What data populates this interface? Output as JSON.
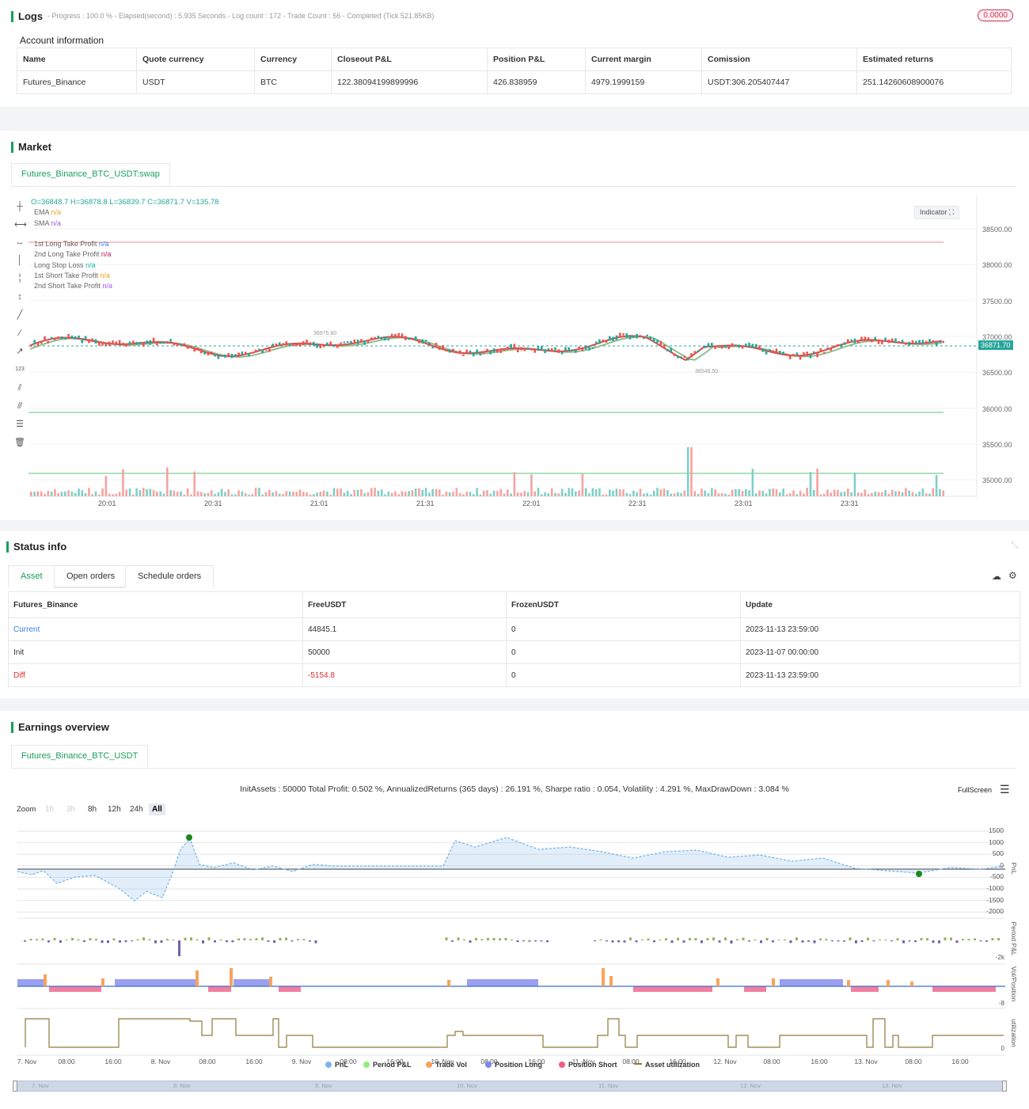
{
  "logs": {
    "title": "Logs",
    "status": "- Progress : 100.0 % - Elapsed(second) : 5.935 Seconds - Log count : 172 - Trade Count : 56 - Completed (Tick 521.85KB)",
    "badge": "0.0000"
  },
  "account": {
    "title": "Account information",
    "headers": [
      "Name",
      "Quote currency",
      "Currency",
      "Closeout P&L",
      "Position P&L",
      "Current margin",
      "Comission",
      "Estimated returns"
    ],
    "row": [
      "Futures_Binance",
      "USDT",
      "BTC",
      "122.38094199899996",
      "426.838959",
      "4979.1999159",
      "USDT:306.205407447",
      "251.14260608900076"
    ]
  },
  "market": {
    "title": "Market",
    "tab": "Futures_Binance_BTC_USDT:swap",
    "ohlc": "O=36848.7 H=36878.8 L=36839.7 C=36871.7 V=135.78",
    "indicators": [
      {
        "name": "EMA",
        "val": "n/a",
        "color": "#f0a030"
      },
      {
        "name": "SMA",
        "val": "n/a",
        "color": "#9a5cc6"
      },
      {
        "name": "1st Long Take Profit",
        "val": "n/a",
        "color": "#3b82f6"
      },
      {
        "name": "2nd Long Take Profit",
        "val": "n/a",
        "color": "#c2185b"
      },
      {
        "name": "Long Stop Loss",
        "val": "n/a",
        "color": "#14b8a6"
      },
      {
        "name": "1st Short Take Profit",
        "val": "n/a",
        "color": "#f59e0b"
      },
      {
        "name": "2nd Short Take Profit",
        "val": "n/a",
        "color": "#a855f7"
      }
    ],
    "indicator_btn": "Indicator",
    "price_labels": [
      "38500.00",
      "38000.00",
      "37500.00",
      "37000.00",
      "36500.00",
      "36000.00",
      "35500.00",
      "35000.00"
    ],
    "last_price": "36871.70",
    "high_mark": "36975.80",
    "low_mark": "36548.50",
    "time_labels": [
      "20:01",
      "20:31",
      "21:01",
      "21:31",
      "22:01",
      "22:31",
      "23:01",
      "23:31"
    ]
  },
  "status": {
    "title": "Status info",
    "tabs": [
      "Asset",
      "Open orders",
      "Schedule orders"
    ],
    "headers": [
      "Futures_Binance",
      "FreeUSDT",
      "FrozenUSDT",
      "Update"
    ],
    "rows": [
      [
        "Current",
        "44845.1",
        "0",
        "2023-11-13 23:59:00"
      ],
      [
        "Init",
        "50000",
        "0",
        "2023-11-07 00:00:00"
      ],
      [
        "Diff",
        "-5154.8",
        "0",
        "2023-11-13 23:59:00"
      ]
    ]
  },
  "earnings": {
    "title": "Earnings overview",
    "tab": "Futures_Binance_BTC_USDT",
    "summary": "InitAssets : 50000 Total Profit: 0.502 %, AnnualizedReturns (365 days) : 26.191 %, Sharpe ratio : 0.054, Volatility : 4.291 %, MaxDrawDown : 3.084 %",
    "fullscreen": "FullScreen",
    "zoom_label": "Zoom",
    "zoom": [
      "1h",
      "3h",
      "8h",
      "12h",
      "24h",
      "All"
    ],
    "pnl_ticks": [
      "1500",
      "1000",
      "500",
      "0",
      "-500",
      "-1000",
      "-1500",
      "-2000"
    ],
    "axis_titles": [
      "PnL",
      "Period P&L",
      "Vol/Position",
      "utilization"
    ],
    "small_ticks": [
      "-2k",
      "-8",
      "0"
    ],
    "x_labels": [
      "7. Nov",
      "08:00",
      "16:00",
      "8. Nov",
      "08:00",
      "16:00",
      "9. Nov",
      "08:00",
      "16:00",
      "10. Nov",
      "08:00",
      "16:00",
      "11. Nov",
      "08:00",
      "16:00",
      "12. Nov",
      "08:00",
      "16:00",
      "13. Nov",
      "08:00",
      "16:00"
    ],
    "navigator_labels": [
      "7. Nov",
      "8. Nov",
      "9. Nov",
      "10. Nov",
      "11. Nov",
      "12. Nov",
      "13. Nov"
    ],
    "legend": [
      {
        "name": "PnL",
        "color": "#7cb5ec"
      },
      {
        "name": "Period P&L",
        "color": "#90ed7d"
      },
      {
        "name": "Trade Vol",
        "color": "#f7a35c"
      },
      {
        "name": "Position Long",
        "color": "#8085e9"
      },
      {
        "name": "Position Short",
        "color": "#f15c80"
      },
      {
        "name": "Asset utilization",
        "color": "#8d7a3a"
      }
    ]
  }
}
